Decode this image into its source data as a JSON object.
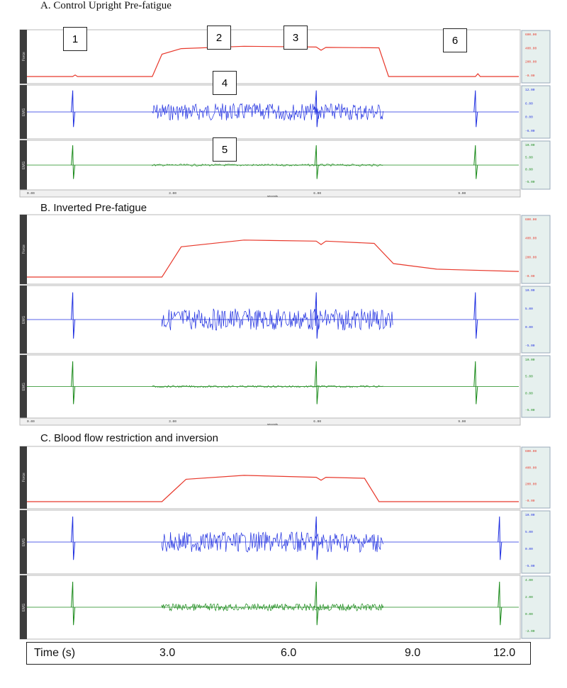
{
  "panels": [
    {
      "id": "A",
      "title": "A.  Control Upright Pre-fatigue"
    },
    {
      "id": "B",
      "title": "B.   Inverted Pre-fatigue"
    },
    {
      "id": "C",
      "title": "C.   Blood flow restriction and inversion"
    }
  ],
  "channel_labels": [
    "Force",
    "EMG",
    "EMG"
  ],
  "callouts": [
    "1",
    "2",
    "3",
    "4",
    "5",
    "6"
  ],
  "time_axis": {
    "label": "Time (s)",
    "ticks": [
      "3.0",
      "6.0",
      "9.0",
      "12.0"
    ]
  },
  "software_axes": {
    "panel_A": {
      "ticks": [
        "0.00",
        "3.00",
        "6.00",
        "9.00"
      ],
      "unit": "seconds"
    },
    "panel_B": {
      "ticks": [
        "0.00",
        "3.00",
        "6.00",
        "9.00"
      ],
      "unit": "seconds"
    }
  },
  "scale_boxes": [
    [
      "600.00",
      "400.00",
      "200.00",
      "-0.00"
    ],
    [
      "12.00",
      "6.00",
      "0.00",
      "-6.00"
    ],
    [
      "10.00",
      "5.00",
      "0.00",
      "-5.00"
    ],
    [
      "600.00",
      "400.00",
      "200.00",
      "-0.00"
    ],
    [
      "10.00",
      "5.00",
      "0.00",
      "-5.00"
    ],
    [
      "10.00",
      "5.00",
      "0.00",
      "-5.00"
    ],
    [
      "600.00",
      "400.00",
      "200.00",
      "-0.00"
    ],
    [
      "10.00",
      "5.00",
      "0.00",
      "-5.00"
    ],
    [
      "4.00",
      "2.00",
      "0.00",
      "-2.00"
    ]
  ],
  "colors": {
    "force": "#e8392c",
    "emg1": "#1f2fe0",
    "emg2": "#1a8a1a",
    "sidebar": "#3c3c3c",
    "scalebox": "#e6f0ee"
  },
  "chart_data": [
    {
      "type": "line",
      "title": "A.  Control Upright Pre-fatigue",
      "series": [
        {
          "name": "Force",
          "x": [
            0.0,
            0.95,
            1.0,
            1.05,
            2.6,
            2.8,
            3.2,
            4.5,
            6.0,
            6.1,
            6.2,
            7.3,
            7.5,
            9.0,
            9.3,
            9.35,
            9.4,
            10.2
          ],
          "y": [
            0,
            0,
            20,
            0,
            0,
            280,
            350,
            380,
            370,
            330,
            365,
            360,
            0,
            0,
            0,
            35,
            0,
            0
          ]
        },
        {
          "name": "EMG",
          "x": [
            0.95,
            2.6,
            7.4,
            6.0,
            9.3
          ],
          "y": [
            0,
            0,
            0,
            0,
            0
          ]
        },
        {
          "name": "EMG",
          "x": [
            0.95,
            6.0,
            9.3
          ],
          "y": [
            0,
            0,
            0
          ]
        }
      ],
      "xlim": [
        0,
        10.2
      ]
    },
    {
      "type": "line",
      "title": "B.   Inverted Pre-fatigue",
      "series": [
        {
          "name": "Force",
          "x": [
            0.0,
            2.8,
            3.2,
            4.5,
            6.0,
            6.1,
            6.2,
            7.2,
            7.6,
            8.5,
            10.2
          ],
          "y": [
            0,
            0,
            270,
            330,
            320,
            290,
            320,
            300,
            120,
            70,
            50
          ]
        },
        {
          "name": "EMG",
          "x": [
            0.95,
            2.8,
            7.6,
            6.0,
            9.3
          ],
          "y": [
            0,
            0,
            0,
            0,
            0
          ]
        },
        {
          "name": "EMG",
          "x": [
            0.95,
            6.0,
            9.3
          ],
          "y": [
            0,
            0,
            0
          ]
        }
      ],
      "xlim": [
        0,
        10.2
      ]
    },
    {
      "type": "line",
      "title": "C.   Blood flow restriction and inversion",
      "series": [
        {
          "name": "Force",
          "x": [
            0.0,
            2.8,
            3.3,
            4.5,
            6.0,
            6.1,
            6.2,
            7.0,
            7.3,
            10.2
          ],
          "y": [
            0,
            0,
            230,
            270,
            250,
            220,
            250,
            240,
            0,
            0
          ]
        },
        {
          "name": "EMG",
          "x": [
            0.95,
            2.8,
            7.4,
            6.0,
            9.8
          ],
          "y": [
            0,
            0,
            0,
            0,
            0
          ]
        },
        {
          "name": "EMG",
          "x": [
            0.95,
            2.8,
            7.4,
            6.0,
            9.8
          ],
          "y": [
            0,
            0,
            0,
            0,
            0
          ]
        }
      ],
      "xlim": [
        0,
        10.2
      ]
    }
  ]
}
